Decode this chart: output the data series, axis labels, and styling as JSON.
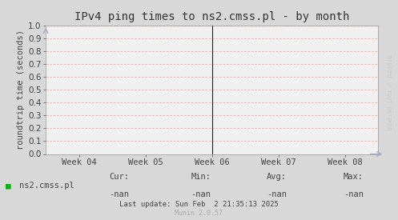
{
  "title": "IPv4 ping times to ns2.cmss.pl - by month",
  "ylabel": "roundtrip time (seconds)",
  "ylim": [
    0.0,
    1.0
  ],
  "yticks": [
    0.0,
    0.1,
    0.2,
    0.3,
    0.4,
    0.5,
    0.6,
    0.7,
    0.8,
    0.9,
    1.0
  ],
  "xtick_labels": [
    "Week 04",
    "Week 05",
    "Week 06",
    "Week 07",
    "Week 08"
  ],
  "xtick_positions": [
    0.1,
    0.3,
    0.5,
    0.7,
    0.9
  ],
  "vline_x": 0.5,
  "bg_color": "#d8d8d8",
  "plot_bg_color": "#f0f0f0",
  "grid_color": "#ffaaaa",
  "title_color": "#333333",
  "axis_color": "#444444",
  "legend_label": "ns2.cmss.pl",
  "legend_color": "#00bb00",
  "cur_val": "-nan",
  "min_val": "-nan",
  "avg_val": "-nan",
  "max_val": "-nan",
  "last_update": "Last update: Sun Feb  2 21:35:13 2025",
  "munin_version": "Munin 2.0.57",
  "watermark": "RRDTOOL / TOBI OETIKER",
  "vline_color": "#222222",
  "title_fontsize": 10,
  "axis_label_fontsize": 7.5,
  "tick_fontsize": 7.5,
  "legend_fontsize": 7.5,
  "footer_fontsize": 6.5,
  "watermark_color": "#c8c8c8",
  "arrow_color": "#aaaacc"
}
